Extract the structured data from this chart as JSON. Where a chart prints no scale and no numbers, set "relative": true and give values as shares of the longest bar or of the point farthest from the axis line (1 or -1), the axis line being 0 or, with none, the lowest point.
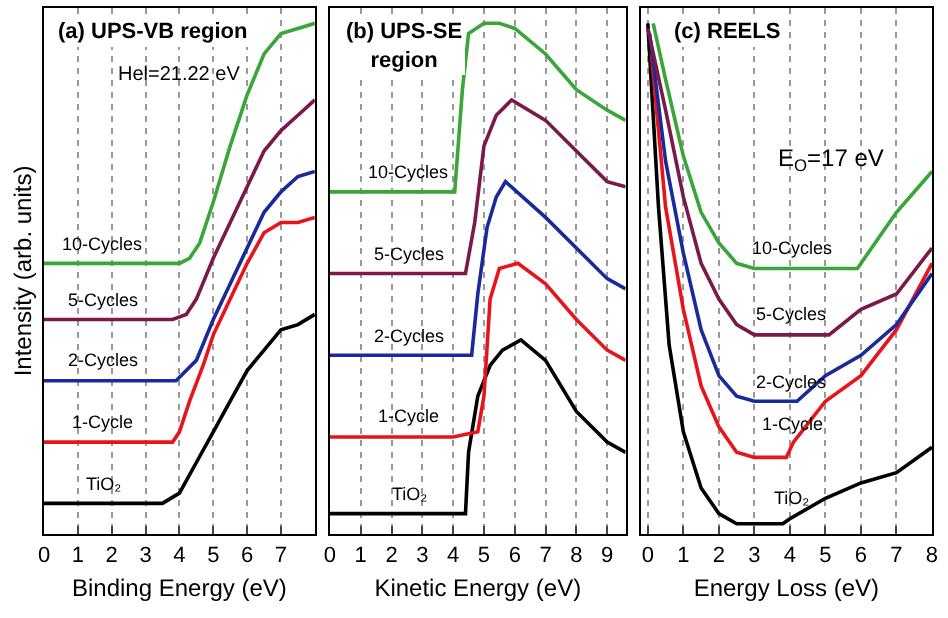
{
  "chart_data": [
    {
      "type": "line",
      "title": "(a) UPS-VB region",
      "ylabel": "Intensity (arb. units)",
      "xlabel": "Binding Energy (eV)",
      "relative": true,
      "xlim": [
        0,
        8
      ],
      "xticks": [
        0,
        1,
        2,
        3,
        4,
        5,
        6,
        7
      ],
      "grid": "x",
      "legend": false,
      "annotations": [
        "Hel=21.22 eV"
      ],
      "series": [
        {
          "name": "TiO₂",
          "color": "#000000",
          "x": [
            0,
            1,
            2,
            3,
            3.5,
            4,
            4.5,
            5,
            5.5,
            6,
            6.5,
            7,
            7.5,
            8
          ],
          "values": [
            0.06,
            0.06,
            0.06,
            0.06,
            0.06,
            0.08,
            0.14,
            0.2,
            0.26,
            0.32,
            0.36,
            0.4,
            0.41,
            0.43
          ]
        },
        {
          "name": "1-Cycle",
          "color": "#e8141c",
          "x": [
            0,
            1,
            2,
            3,
            3.8,
            4,
            4.3,
            4.7,
            5,
            5.5,
            6,
            6.5,
            7,
            7.5,
            8
          ],
          "values": [
            0.18,
            0.18,
            0.18,
            0.18,
            0.18,
            0.2,
            0.26,
            0.33,
            0.39,
            0.46,
            0.53,
            0.59,
            0.61,
            0.61,
            0.62
          ]
        },
        {
          "name": "2-Cycles",
          "color": "#1a2a9c",
          "x": [
            0,
            1,
            2,
            3,
            3.9,
            4.2,
            4.5,
            5,
            5.5,
            6,
            6.5,
            7,
            7.5,
            8
          ],
          "values": [
            0.3,
            0.3,
            0.3,
            0.3,
            0.3,
            0.32,
            0.34,
            0.42,
            0.49,
            0.56,
            0.63,
            0.67,
            0.7,
            0.71
          ]
        },
        {
          "name": "5-Cycles",
          "color": "#7a1a4a",
          "x": [
            0,
            1,
            2,
            3,
            3.8,
            4.2,
            4.5,
            5,
            5.5,
            6,
            6.5,
            7,
            7.5,
            8
          ],
          "values": [
            0.42,
            0.42,
            0.42,
            0.42,
            0.42,
            0.43,
            0.46,
            0.54,
            0.61,
            0.68,
            0.75,
            0.79,
            0.82,
            0.85
          ]
        },
        {
          "name": "10-Cycles",
          "color": "#3aa63a",
          "x": [
            0,
            1,
            2,
            3,
            4,
            4.3,
            4.6,
            5,
            5.5,
            6,
            6.5,
            7,
            7.5,
            8
          ],
          "values": [
            0.53,
            0.53,
            0.53,
            0.53,
            0.53,
            0.54,
            0.57,
            0.65,
            0.76,
            0.86,
            0.94,
            0.98,
            0.99,
            1.0
          ]
        }
      ]
    },
    {
      "type": "line",
      "title": "(b) UPS-SE region",
      "xlabel": "Kinetic Energy (eV)",
      "relative": true,
      "xlim": [
        0,
        9.6
      ],
      "xticks": [
        0,
        1,
        2,
        3,
        4,
        5,
        6,
        7,
        8,
        9
      ],
      "grid": "x",
      "legend": false,
      "series": [
        {
          "name": "TiO₂",
          "color": "#000000",
          "x": [
            0,
            1,
            2,
            3,
            4,
            4.4,
            4.5,
            4.8,
            5.2,
            5.6,
            6.2,
            7,
            8,
            9,
            9.6
          ],
          "values": [
            0.04,
            0.04,
            0.04,
            0.04,
            0.04,
            0.04,
            0.16,
            0.27,
            0.33,
            0.36,
            0.38,
            0.34,
            0.24,
            0.18,
            0.16
          ]
        },
        {
          "name": "1-Cycle",
          "color": "#e8141c",
          "x": [
            0,
            1,
            2,
            3,
            4,
            4.8,
            5.0,
            5.2,
            5.5,
            6.1,
            7,
            8,
            9,
            9.6
          ],
          "values": [
            0.19,
            0.19,
            0.19,
            0.19,
            0.19,
            0.2,
            0.27,
            0.46,
            0.52,
            0.53,
            0.49,
            0.42,
            0.36,
            0.34
          ]
        },
        {
          "name": "2-Cycles",
          "color": "#1a2a9c",
          "x": [
            0,
            1,
            2,
            3,
            4,
            4.6,
            4.8,
            5.1,
            5.4,
            5.7,
            7,
            8,
            9,
            9.6
          ],
          "values": [
            0.35,
            0.35,
            0.35,
            0.35,
            0.35,
            0.35,
            0.47,
            0.6,
            0.66,
            0.69,
            0.62,
            0.56,
            0.5,
            0.48
          ]
        },
        {
          "name": "5-Cycles",
          "color": "#7a1a4a",
          "x": [
            0,
            1,
            2,
            3,
            4,
            4.4,
            4.7,
            5.0,
            5.4,
            5.9,
            7,
            8,
            9,
            9.6
          ],
          "values": [
            0.51,
            0.51,
            0.51,
            0.51,
            0.51,
            0.51,
            0.61,
            0.76,
            0.82,
            0.85,
            0.81,
            0.75,
            0.69,
            0.68
          ]
        },
        {
          "name": "10-Cycles",
          "color": "#3aa63a",
          "x": [
            0,
            1,
            2,
            3,
            4,
            4.05,
            4.3,
            4.5,
            5,
            5.5,
            6,
            7,
            8,
            9,
            9.6
          ],
          "values": [
            0.67,
            0.67,
            0.67,
            0.67,
            0.67,
            0.67,
            0.87,
            0.98,
            1.0,
            1.0,
            0.99,
            0.94,
            0.87,
            0.83,
            0.81
          ]
        }
      ]
    },
    {
      "type": "line",
      "title": "(c) REELS",
      "xlabel": "Energy Loss (eV)",
      "relative": true,
      "xlim": [
        -0.2,
        8
      ],
      "xticks": [
        0,
        1,
        2,
        3,
        4,
        5,
        6,
        7,
        8
      ],
      "grid": "x",
      "legend": false,
      "annotations": [
        "E$_{O}$=17 eV"
      ],
      "series": [
        {
          "name": "TiO₂",
          "color": "#000000",
          "x": [
            0,
            0.3,
            0.6,
            1,
            1.5,
            2,
            2.5,
            3,
            3.8,
            4,
            5,
            6,
            7,
            8
          ],
          "values": [
            1.0,
            0.64,
            0.37,
            0.2,
            0.09,
            0.04,
            0.02,
            0.02,
            0.02,
            0.03,
            0.07,
            0.1,
            0.12,
            0.17
          ]
        },
        {
          "name": "1-Cycle",
          "color": "#e8141c",
          "x": [
            0.1,
            0.5,
            1,
            1.5,
            2,
            2.5,
            3,
            3.9,
            4.1,
            5,
            6,
            7,
            8
          ],
          "values": [
            0.94,
            0.64,
            0.44,
            0.29,
            0.21,
            0.16,
            0.15,
            0.15,
            0.18,
            0.26,
            0.31,
            0.4,
            0.53
          ]
        },
        {
          "name": "2-Cycles",
          "color": "#1a2a9c",
          "x": [
            0.05,
            0.5,
            1,
            1.5,
            2,
            2.5,
            3,
            4.2,
            5,
            6,
            7,
            8
          ],
          "values": [
            0.98,
            0.73,
            0.55,
            0.4,
            0.31,
            0.27,
            0.26,
            0.26,
            0.31,
            0.35,
            0.41,
            0.51
          ]
        },
        {
          "name": "5-Cycles",
          "color": "#7a1a4a",
          "x": [
            0,
            0.5,
            1,
            1.5,
            2,
            2.5,
            3,
            5.1,
            6,
            7,
            8
          ],
          "values": [
            0.99,
            0.83,
            0.66,
            0.53,
            0.46,
            0.41,
            0.39,
            0.39,
            0.44,
            0.47,
            0.56
          ]
        },
        {
          "name": "10-Cycles",
          "color": "#3aa63a",
          "x": [
            0.15,
            0.5,
            1,
            1.5,
            2,
            2.5,
            3,
            5.9,
            6.5,
            7,
            8
          ],
          "values": [
            1.0,
            0.89,
            0.74,
            0.63,
            0.57,
            0.53,
            0.52,
            0.52,
            0.58,
            0.63,
            0.71
          ]
        }
      ]
    }
  ]
}
